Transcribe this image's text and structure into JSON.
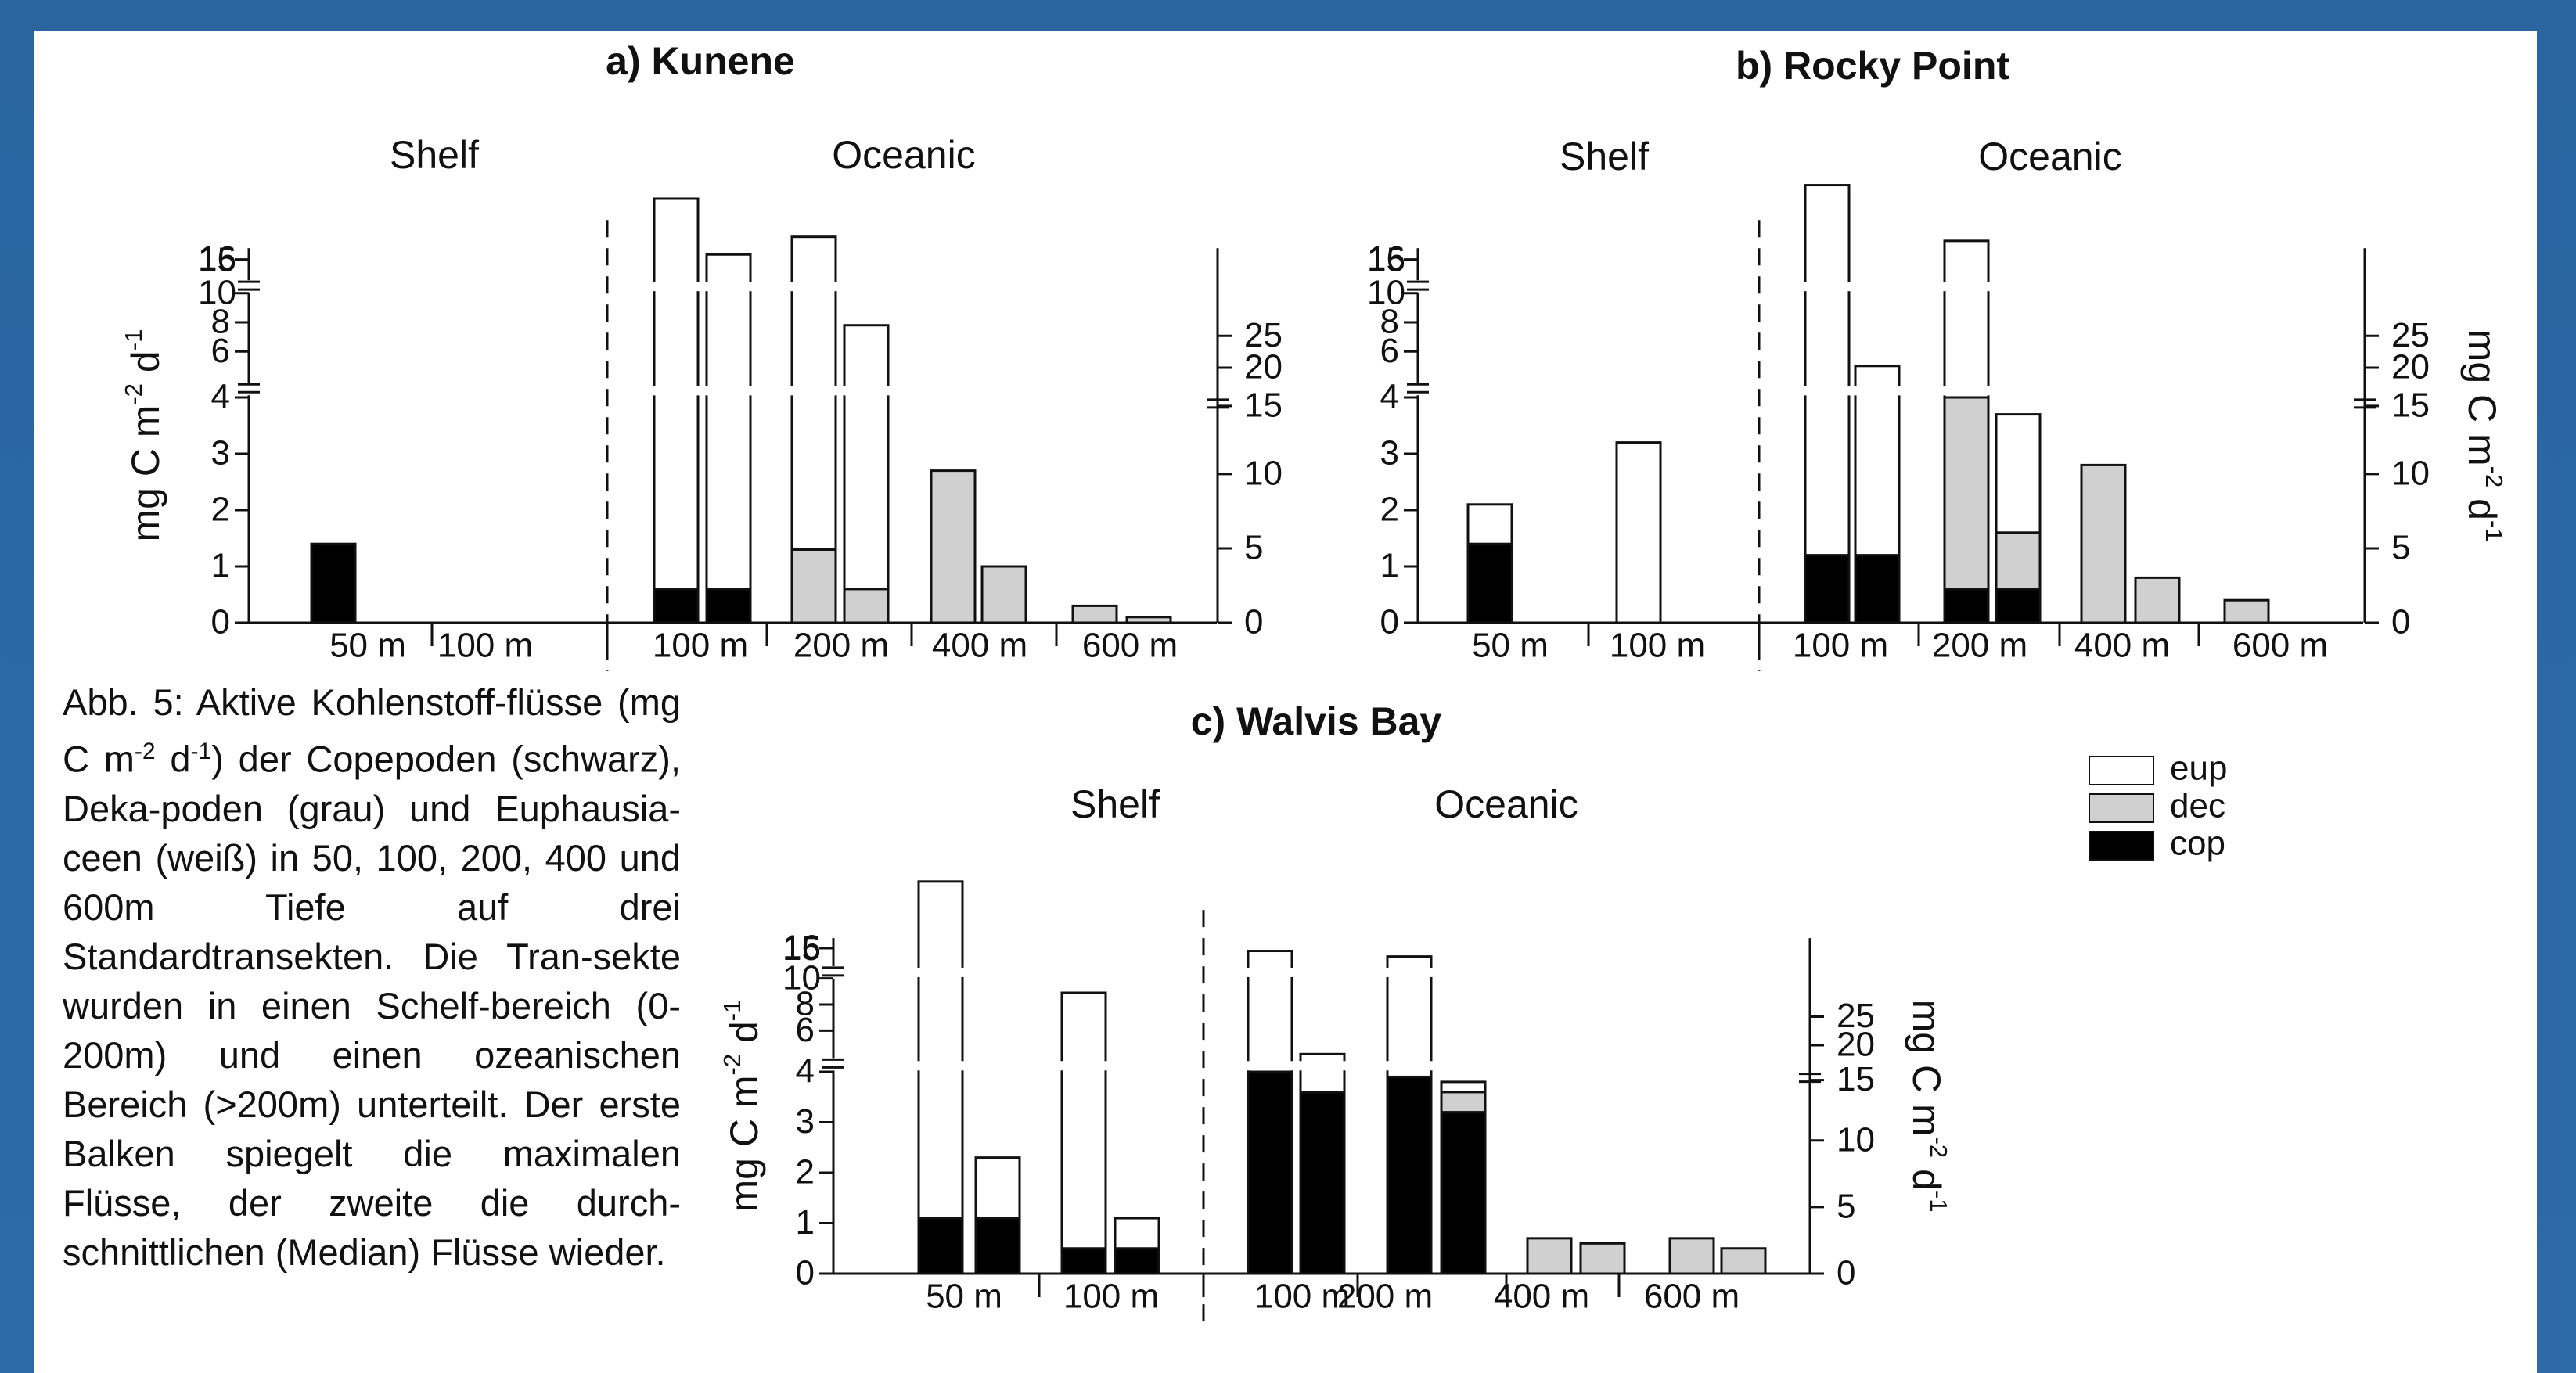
{
  "colors": {
    "background_border": "#2a65a0",
    "panel": "#ffffff",
    "cop": "#000000",
    "dec": "#d0d0d0",
    "eup": "#ffffff",
    "outline": "#111111"
  },
  "caption": {
    "line1": "Abb. 5: Aktive Kohlenstoff-flüsse",
    "line2_pre": "(mg C m",
    "line2_sup1": "-2",
    "line2_mid": " d",
    "line2_sup2": "-1",
    "line2_post": ") der Copepoden",
    "rest": "(schwarz), Deka-poden (grau) und Euphausia-ceen (weiß) in 50, 100, 200, 400 und 600m Tiefe auf drei Standardtransekten. Die Tran-sekte wurden in einen Schelf-bereich (0-200m) und einen ozeanischen Bereich (>200m) unterteilt. Der erste Balken spiegelt die maximalen Flüsse, der zweite die durch-schnittlichen (Median) Flüsse wieder."
  },
  "legend": {
    "eup": "eup",
    "dec": "dec",
    "cop": "cop"
  },
  "chart_data": [
    {
      "type": "bar",
      "stacked": true,
      "title": "a) Kunene",
      "regions": [
        "Shelf",
        "Oceanic"
      ],
      "ylabel_left": "mg C m-2 d-1",
      "ylabel_right": "",
      "left_ticks": [
        "0",
        "1",
        "2",
        "3",
        "4",
        "6",
        "8",
        "10",
        "15",
        "16"
      ],
      "right_ticks": [
        "0",
        "5",
        "10",
        "15",
        "20",
        "25"
      ],
      "categories": [
        "50 m",
        "100 m",
        "100 m",
        "200 m",
        "400 m",
        "600 m"
      ],
      "stack_order": [
        "cop",
        "dec",
        "eup"
      ],
      "bars": [
        {
          "category": "50 m",
          "kind": "max",
          "cop": 1.4,
          "dec": 0,
          "eup": 0
        },
        {
          "category": "100 m",
          "kind": "max",
          "cop": 0.6,
          "dec": 0,
          "eup": 35
        },
        {
          "category": "100 m",
          "kind": "median",
          "cop": 0.6,
          "dec": 0,
          "eup": 17
        },
        {
          "category": "200 m",
          "kind": "max",
          "cop": 0,
          "dec": 1.3,
          "eup": 22
        },
        {
          "category": "200 m",
          "kind": "median",
          "cop": 0,
          "dec": 0.6,
          "eup": 7.2
        },
        {
          "category": "400 m",
          "kind": "max",
          "cop": 0,
          "dec": 2.7,
          "eup": 0
        },
        {
          "category": "400 m",
          "kind": "median",
          "cop": 0,
          "dec": 1.0,
          "eup": 0
        },
        {
          "category": "600 m",
          "kind": "max",
          "cop": 0,
          "dec": 0.3,
          "eup": 0
        },
        {
          "category": "600 m",
          "kind": "median",
          "cop": 0,
          "dec": 0.1,
          "eup": 0
        }
      ]
    },
    {
      "type": "bar",
      "stacked": true,
      "title": "b) Rocky Point",
      "regions": [
        "Shelf",
        "Oceanic"
      ],
      "ylabel_left": "",
      "ylabel_right": "mg C m-2 d-1",
      "left_ticks": [
        "0",
        "1",
        "2",
        "3",
        "4",
        "6",
        "8",
        "10",
        "15",
        "16"
      ],
      "right_ticks": [
        "0",
        "5",
        "10",
        "15",
        "20",
        "25"
      ],
      "categories": [
        "50 m",
        "100 m",
        "100 m",
        "200 m",
        "400 m",
        "600 m"
      ],
      "stack_order": [
        "cop",
        "dec",
        "eup"
      ],
      "bars": [
        {
          "category": "50 m",
          "kind": "max",
          "cop": 1.4,
          "dec": 0,
          "eup": 0.7
        },
        {
          "category": "100 m",
          "kind": "max",
          "cop": 0,
          "dec": 0,
          "eup": 3.2
        },
        {
          "category": "100 m",
          "kind": "max",
          "cop": 1.2,
          "dec": 0,
          "eup": 42
        },
        {
          "category": "100 m",
          "kind": "median",
          "cop": 1.2,
          "dec": 0,
          "eup": 3.8
        },
        {
          "category": "200 m",
          "kind": "max",
          "cop": 0.6,
          "dec": 3.4,
          "eup": 18
        },
        {
          "category": "200 m",
          "kind": "median",
          "cop": 0.6,
          "dec": 1.0,
          "eup": 2.1
        },
        {
          "category": "400 m",
          "kind": "max",
          "cop": 0,
          "dec": 2.8,
          "eup": 0
        },
        {
          "category": "400 m",
          "kind": "median",
          "cop": 0,
          "dec": 0.8,
          "eup": 0
        },
        {
          "category": "600 m",
          "kind": "max",
          "cop": 0,
          "dec": 0.4,
          "eup": 0
        }
      ]
    },
    {
      "type": "bar",
      "stacked": true,
      "title": "c) Walvis Bay",
      "regions": [
        "Shelf",
        "Oceanic"
      ],
      "ylabel_left": "mg C m-2 d-1",
      "ylabel_right": "mg C m-2 d-1",
      "left_ticks": [
        "0",
        "1",
        "2",
        "3",
        "4",
        "6",
        "8",
        "10",
        "15",
        "16"
      ],
      "right_ticks": [
        "0",
        "5",
        "10",
        "15",
        "20",
        "25"
      ],
      "categories": [
        "50 m",
        "100 m",
        "100 m",
        "200 m",
        "400 m",
        "600 m"
      ],
      "stack_order": [
        "cop",
        "dec",
        "eup"
      ],
      "bars": [
        {
          "category": "50 m",
          "kind": "max",
          "cop": 1.1,
          "dec": 0,
          "eup": 40
        },
        {
          "category": "50 m",
          "kind": "median",
          "cop": 1.1,
          "dec": 0,
          "eup": 1.2
        },
        {
          "category": "100 m",
          "kind": "max",
          "cop": 0.5,
          "dec": 0,
          "eup": 8.4
        },
        {
          "category": "100 m",
          "kind": "median",
          "cop": 0.5,
          "dec": 0,
          "eup": 0.6
        },
        {
          "category": "100 m",
          "kind": "max",
          "cop": 4.0,
          "dec": 0,
          "eup": 11
        },
        {
          "category": "100 m",
          "kind": "median",
          "cop": 3.6,
          "dec": 0,
          "eup": 0.6
        },
        {
          "category": "200 m",
          "kind": "max",
          "cop": 3.9,
          "dec": 0,
          "eup": 9.1
        },
        {
          "category": "200 m",
          "kind": "median",
          "cop": 3.2,
          "dec": 0.4,
          "eup": 0.2
        },
        {
          "category": "400 m",
          "kind": "max",
          "cop": 0,
          "dec": 0.7,
          "eup": 0
        },
        {
          "category": "400 m",
          "kind": "median",
          "cop": 0,
          "dec": 0.6,
          "eup": 0
        },
        {
          "category": "600 m",
          "kind": "max",
          "cop": 0,
          "dec": 0.7,
          "eup": 0
        },
        {
          "category": "600 m",
          "kind": "median",
          "cop": 0,
          "dec": 0.5,
          "eup": 0
        }
      ]
    }
  ]
}
